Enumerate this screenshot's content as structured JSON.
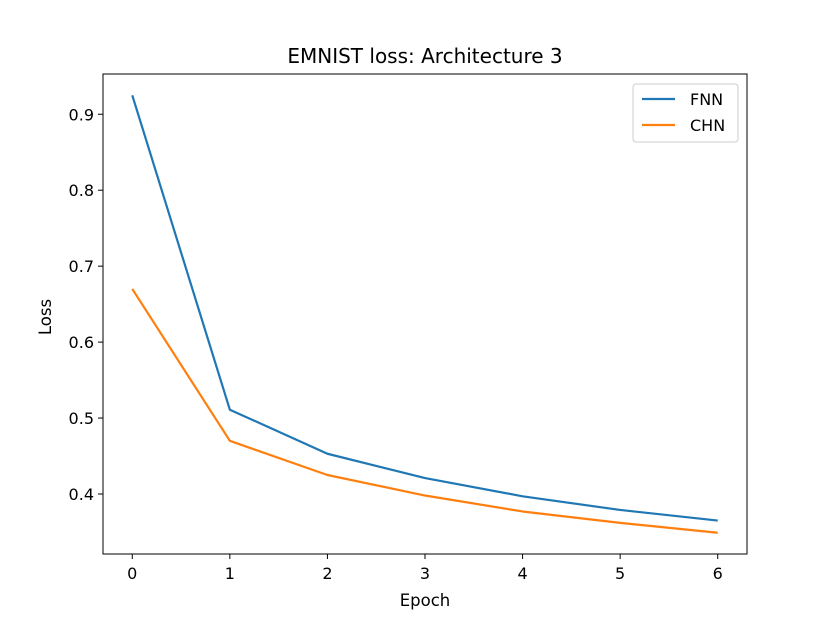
{
  "chart_data": {
    "type": "line",
    "title": "EMNIST loss: Architecture 3",
    "xlabel": "Epoch",
    "ylabel": "Loss",
    "x": [
      0,
      1,
      2,
      3,
      4,
      5,
      6
    ],
    "series": [
      {
        "name": "FNN",
        "color": "#1f77b4",
        "values": [
          0.925,
          0.511,
          0.453,
          0.421,
          0.397,
          0.379,
          0.365
        ]
      },
      {
        "name": "CHN",
        "color": "#ff7f0e",
        "values": [
          0.67,
          0.47,
          0.425,
          0.398,
          0.377,
          0.362,
          0.349
        ]
      }
    ],
    "xlim": [
      -0.3,
      6.3
    ],
    "ylim": [
      0.321,
      0.953
    ],
    "xticks": [
      0,
      1,
      2,
      3,
      4,
      5,
      6
    ],
    "yticks": [
      0.4,
      0.5,
      0.6,
      0.7,
      0.8,
      0.9
    ],
    "grid": false,
    "legend_position": "top-right"
  }
}
